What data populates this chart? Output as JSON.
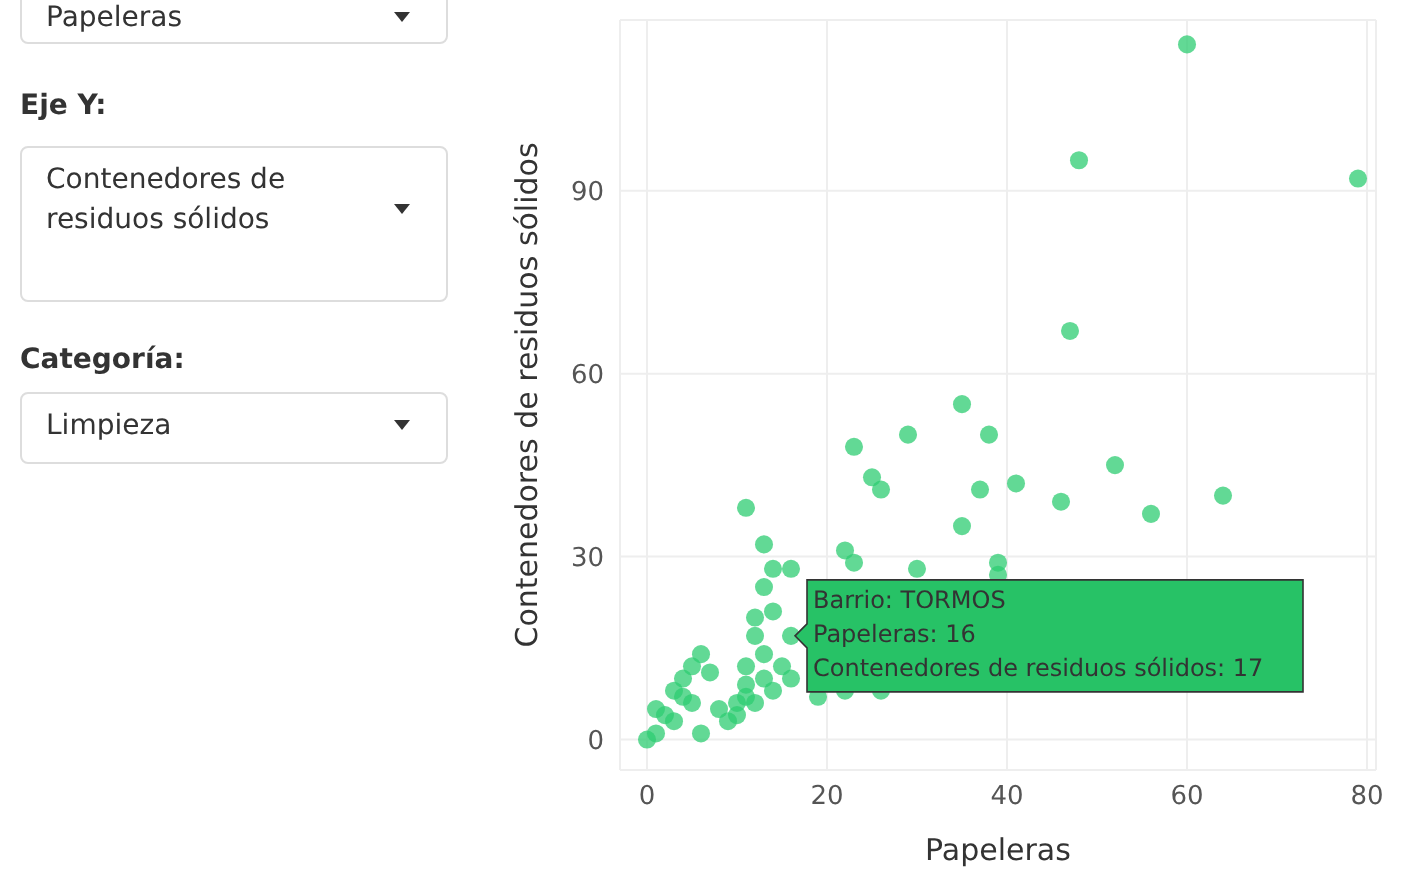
{
  "chart_data": {
    "type": "scatter",
    "xlabel": "Papeleras",
    "ylabel": "Contenedores de residuos sólidos",
    "x": [
      60,
      48,
      79,
      47,
      35,
      52,
      64,
      56,
      46,
      29,
      38,
      23,
      25,
      26,
      37,
      41,
      35,
      11,
      13,
      14,
      16,
      22,
      23,
      30,
      39,
      39,
      13,
      12,
      12,
      14,
      16,
      13,
      11,
      0,
      1,
      6,
      1,
      2,
      3,
      4,
      5,
      6,
      4,
      7,
      8,
      9,
      10,
      10,
      11,
      11,
      12,
      13,
      14,
      15,
      16,
      22,
      26,
      19,
      5,
      3
    ],
    "series": [
      {
        "color": "#2ecc71",
        "values": [
          114,
          95,
          92,
          67,
          55,
          45,
          40,
          37,
          39,
          50,
          50,
          48,
          43,
          41,
          41,
          42,
          35,
          38,
          32,
          28,
          28,
          31,
          29,
          28,
          29,
          27,
          25,
          20,
          17,
          21,
          17,
          14,
          12,
          0,
          1,
          1,
          5,
          4,
          8,
          10,
          12,
          14,
          7,
          11,
          5,
          3,
          4,
          6,
          7,
          9,
          6,
          10,
          8,
          12,
          10,
          8,
          8,
          7,
          6,
          3
        ]
      }
    ],
    "xlim": [
      -3,
      81
    ],
    "ylim": [
      -5,
      118
    ],
    "xticks": [
      0,
      20,
      40,
      60,
      80
    ],
    "yticks": [
      0,
      30,
      60,
      90
    ],
    "grid": true,
    "marker": "circle",
    "legend": false,
    "annotations": [
      {
        "text": "Barrio: TORMOS\nPapeleras: 16\nContenedores de residuos sólidos: 17",
        "x": 16,
        "y": 17
      },
      "Papeleras",
      "Eje Y:",
      "Contenedores de residuos sólidos",
      "Categoría:",
      "Limpieza"
    ]
  }
}
